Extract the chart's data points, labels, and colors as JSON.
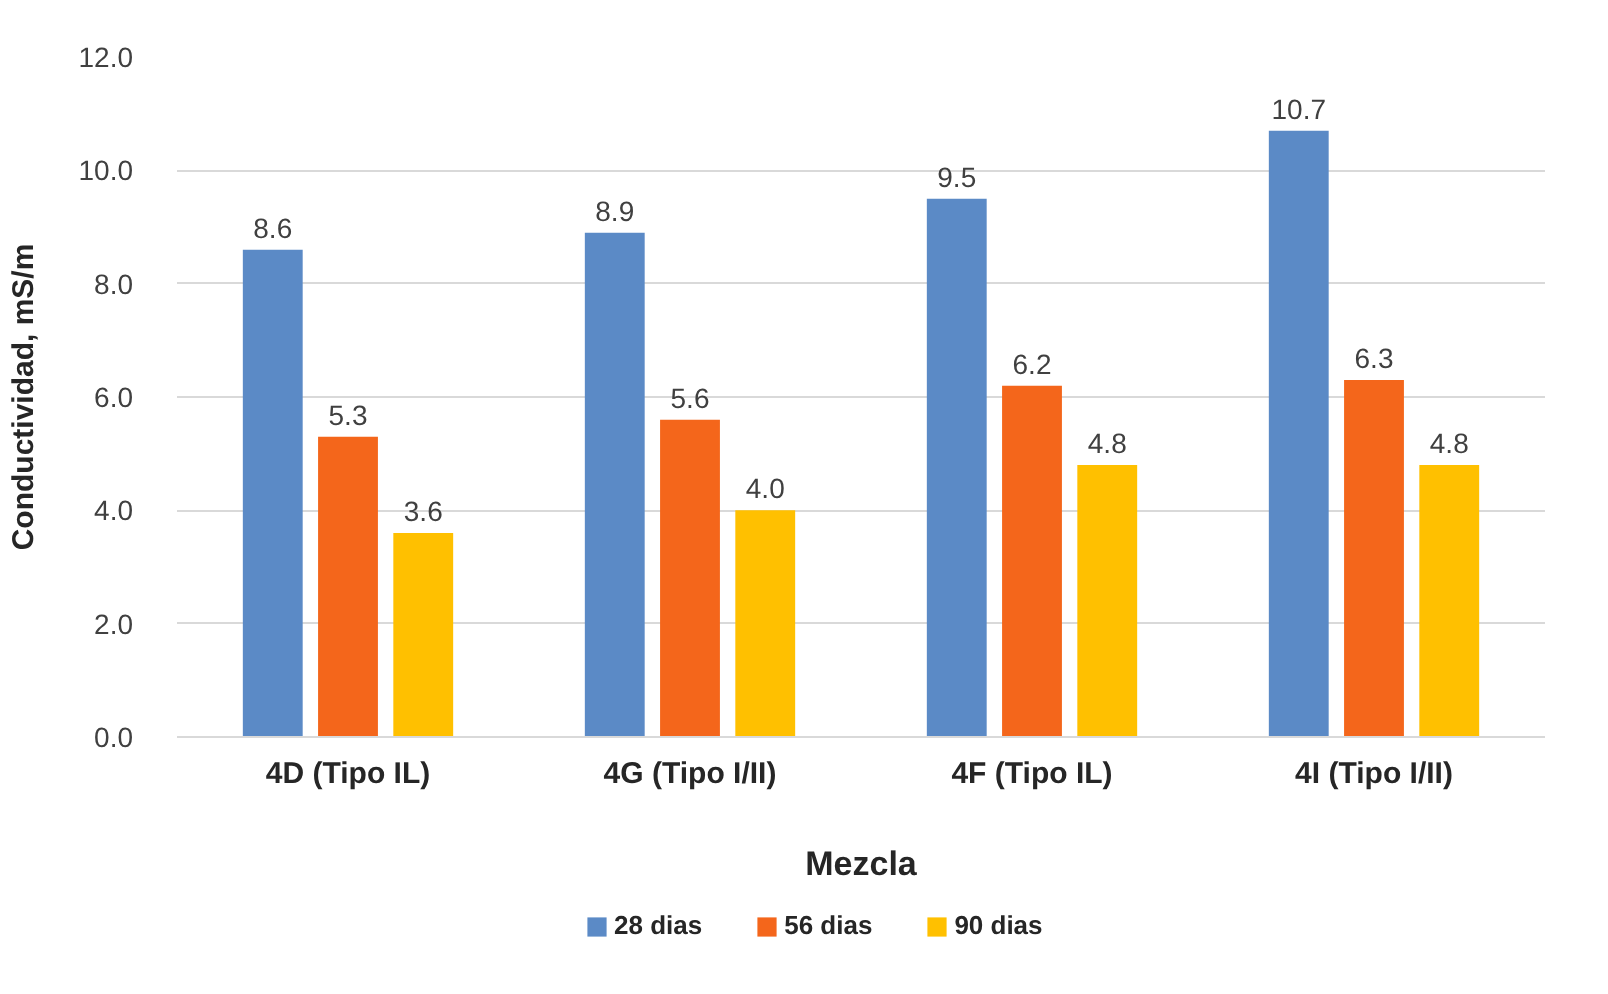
{
  "chart_data": {
    "type": "bar",
    "xlabel": "Mezcla",
    "ylabel": "Conductividad, mS/m",
    "categories": [
      "4D (Tipo IL)",
      "4G (Tipo I/II)",
      "4F (Tipo IL)",
      "4I (Tipo I/II)"
    ],
    "series": [
      {
        "name": "28 dias",
        "color": "#5b8ac6",
        "values": [
          8.6,
          8.9,
          9.5,
          10.7
        ],
        "value_labels": [
          "8.6",
          "8.9",
          "9.5",
          "10.7"
        ]
      },
      {
        "name": "56 dias",
        "color": "#f4661b",
        "values": [
          5.3,
          5.6,
          6.2,
          6.3
        ],
        "value_labels": [
          "5.3",
          "5.6",
          "6.2",
          "6.3"
        ]
      },
      {
        "name": "90 dias",
        "color": "#ffc000",
        "values": [
          3.6,
          4.0,
          4.8,
          4.8
        ],
        "value_labels": [
          "3.6",
          "4.0",
          "4.8",
          "4.8"
        ]
      }
    ],
    "ylim": [
      0,
      12
    ],
    "yticks": [
      {
        "value": 0,
        "label": "0.0"
      },
      {
        "value": 2,
        "label": "2.0"
      },
      {
        "value": 4,
        "label": "4.0"
      },
      {
        "value": 6,
        "label": "6.0"
      },
      {
        "value": 8,
        "label": "8.0"
      },
      {
        "value": 10,
        "label": "10.0"
      },
      {
        "value": 12,
        "label": "12.0"
      }
    ],
    "grid": "y",
    "legend": "bottom"
  }
}
